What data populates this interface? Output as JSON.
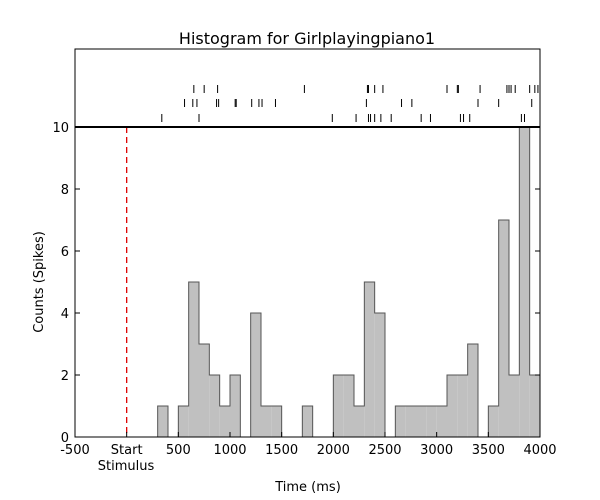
{
  "chart_data": {
    "type": "bar",
    "title": "Histogram for Girlplayingpiano1",
    "xlabel": "Time (ms)",
    "ylabel": "Counts (Spikes)",
    "xlim": [
      -500,
      4000
    ],
    "ylim": [
      0,
      10
    ],
    "grid": false,
    "bin_width_ms": 100,
    "x_ticks": [
      {
        "value": -500,
        "label": "-500"
      },
      {
        "value": 0,
        "label": "Start"
      },
      {
        "value": 500,
        "label": "500"
      },
      {
        "value": 1000,
        "label": "1000"
      },
      {
        "value": 1500,
        "label": "1500"
      },
      {
        "value": 2000,
        "label": "2000"
      },
      {
        "value": 2500,
        "label": "2500"
      },
      {
        "value": 3000,
        "label": "3000"
      },
      {
        "value": 3500,
        "label": "3500"
      },
      {
        "value": 4000,
        "label": "4000"
      }
    ],
    "stimulus_label": "Stimulus",
    "y_ticks": [
      0,
      2,
      4,
      6,
      8,
      10
    ],
    "stimulus_onset_ms": 0,
    "stimulus_line_color": "#dd0000",
    "bar_fill": "#c0c0c0",
    "bar_edge": "#555555",
    "bins": [
      {
        "x": 300,
        "count": 1
      },
      {
        "x": 400,
        "count": 0
      },
      {
        "x": 500,
        "count": 1
      },
      {
        "x": 600,
        "count": 5
      },
      {
        "x": 700,
        "count": 3
      },
      {
        "x": 800,
        "count": 2
      },
      {
        "x": 900,
        "count": 1
      },
      {
        "x": 1000,
        "count": 2
      },
      {
        "x": 1100,
        "count": 0
      },
      {
        "x": 1200,
        "count": 4
      },
      {
        "x": 1300,
        "count": 1
      },
      {
        "x": 1400,
        "count": 1
      },
      {
        "x": 1500,
        "count": 0
      },
      {
        "x": 1600,
        "count": 0
      },
      {
        "x": 1700,
        "count": 1
      },
      {
        "x": 1800,
        "count": 0
      },
      {
        "x": 1900,
        "count": 0
      },
      {
        "x": 2000,
        "count": 2
      },
      {
        "x": 2100,
        "count": 2
      },
      {
        "x": 2200,
        "count": 1
      },
      {
        "x": 2300,
        "count": 5
      },
      {
        "x": 2400,
        "count": 4
      },
      {
        "x": 2500,
        "count": 0
      },
      {
        "x": 2600,
        "count": 1
      },
      {
        "x": 2700,
        "count": 1
      },
      {
        "x": 2800,
        "count": 1
      },
      {
        "x": 2900,
        "count": 1
      },
      {
        "x": 3000,
        "count": 1
      },
      {
        "x": 3100,
        "count": 2
      },
      {
        "x": 3200,
        "count": 2
      },
      {
        "x": 3300,
        "count": 3
      },
      {
        "x": 3400,
        "count": 0
      },
      {
        "x": 3500,
        "count": 1
      },
      {
        "x": 3600,
        "count": 7
      },
      {
        "x": 3700,
        "count": 2
      },
      {
        "x": 3800,
        "count": 10
      },
      {
        "x": 3900,
        "count": 2
      }
    ],
    "raster_trials": [
      [
        650,
        750,
        880,
        1720,
        2330,
        2340,
        2400,
        2480,
        3100,
        3200,
        3210,
        3420,
        3680,
        3700,
        3720,
        3760,
        3900,
        3950,
        3980
      ],
      [
        560,
        640,
        680,
        870,
        890,
        1050,
        1060,
        1210,
        1280,
        1310,
        1440,
        2320,
        2660,
        2760,
        3400,
        3600,
        3920
      ],
      [
        340,
        700,
        1990,
        2220,
        2340,
        2360,
        2400,
        2460,
        2560,
        2850,
        2940,
        3230,
        3260,
        3320,
        3820,
        3850
      ]
    ]
  }
}
